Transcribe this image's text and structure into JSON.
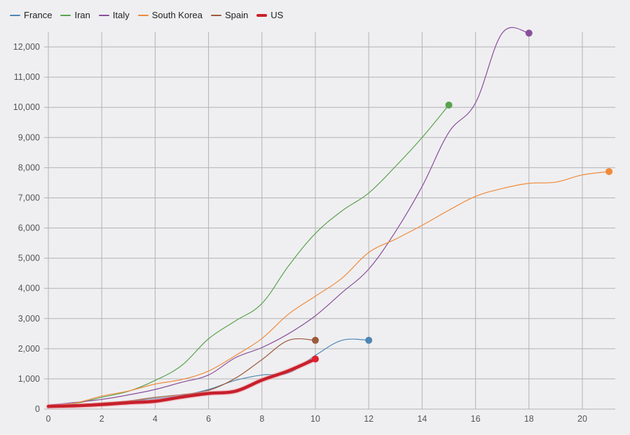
{
  "legend": [
    {
      "name": "France",
      "color": "#4e86b4"
    },
    {
      "name": "Iran",
      "color": "#5aa34d"
    },
    {
      "name": "Italy",
      "color": "#8a4f9c"
    },
    {
      "name": "South Korea",
      "color": "#f08a3a"
    },
    {
      "name": "Spain",
      "color": "#9c5a3c"
    },
    {
      "name": "US",
      "color": "#c8202c"
    }
  ],
  "chart_data": {
    "type": "line",
    "title": "",
    "xlabel": "",
    "ylabel": "",
    "xlim": [
      0,
      21.2
    ],
    "ylim": [
      0,
      12400
    ],
    "x_ticks": [
      0,
      2,
      4,
      6,
      8,
      10,
      12,
      14,
      16,
      18,
      20
    ],
    "y_ticks": [
      0,
      1000,
      2000,
      3000,
      4000,
      5000,
      6000,
      7000,
      8000,
      9000,
      10000,
      11000,
      12000
    ],
    "y_tick_labels": [
      "0",
      "1,000",
      "2,000",
      "3,000",
      "4,000",
      "5,000",
      "6,000",
      "7,000",
      "8,000",
      "9,000",
      "10,000",
      "11,000",
      "12,000"
    ],
    "grid": true,
    "legend_position": "top-left",
    "series": [
      {
        "name": "France",
        "color": "#4e86b4",
        "width": 1.2,
        "x": [
          0,
          1,
          2,
          3,
          4,
          5,
          6,
          7,
          8,
          9,
          10,
          11,
          12
        ],
        "values": [
          100,
          130,
          190,
          250,
          350,
          450,
          650,
          950,
          1130,
          1200,
          1780,
          2280,
          2280
        ]
      },
      {
        "name": "Iran",
        "color": "#5aa34d",
        "width": 1.2,
        "x": [
          0,
          1,
          2,
          3,
          4,
          5,
          6,
          7,
          8,
          9,
          10,
          11,
          12,
          13,
          14,
          15
        ],
        "values": [
          95,
          180,
          390,
          590,
          950,
          1450,
          2330,
          2920,
          3500,
          4750,
          5820,
          6570,
          7160,
          8040,
          9000,
          10075
        ]
      },
      {
        "name": "Italy",
        "color": "#8a4f9c",
        "width": 1.2,
        "x": [
          0,
          1,
          2,
          3,
          4,
          5,
          6,
          7,
          8,
          9,
          10,
          11,
          12,
          13,
          14,
          15,
          16,
          17,
          18
        ],
        "values": [
          130,
          220,
          320,
          470,
          650,
          890,
          1130,
          1700,
          2040,
          2500,
          3090,
          3860,
          4640,
          5880,
          7380,
          9170,
          10150,
          12460,
          12460
        ]
      },
      {
        "name": "South Korea",
        "color": "#f08a3a",
        "width": 1.2,
        "x": [
          0,
          1,
          2,
          3,
          4,
          5,
          6,
          7,
          8,
          9,
          10,
          11,
          12,
          13,
          14,
          15,
          16,
          17,
          18,
          19,
          20,
          21
        ],
        "values": [
          110,
          200,
          430,
          600,
          830,
          980,
          1260,
          1770,
          2340,
          3150,
          3740,
          4340,
          5190,
          5630,
          6090,
          6590,
          7050,
          7310,
          7480,
          7520,
          7760,
          7870
        ]
      },
      {
        "name": "Spain",
        "color": "#9c5a3c",
        "width": 1.2,
        "x": [
          0,
          1,
          2,
          3,
          4,
          5,
          6,
          7,
          8,
          9,
          10
        ],
        "values": [
          100,
          140,
          200,
          270,
          390,
          480,
          620,
          1020,
          1640,
          2280,
          2280
        ]
      },
      {
        "name": "US",
        "color": "#c8202c",
        "width": 4.5,
        "x": [
          0,
          1,
          2,
          3,
          4,
          5,
          6,
          7,
          8,
          9,
          10
        ],
        "values": [
          90,
          110,
          150,
          210,
          260,
          400,
          520,
          590,
          960,
          1270,
          1660
        ]
      }
    ]
  }
}
